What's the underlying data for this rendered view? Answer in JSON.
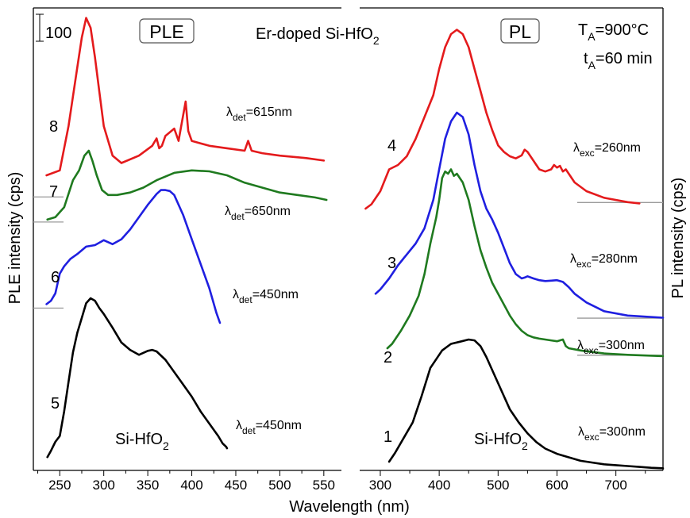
{
  "chart_data": [
    {
      "type": "line",
      "panel": "PLE",
      "title": "PLE",
      "xlabel": "Wavelength (nm)",
      "ylabel": "PLE intensity (cps)",
      "xlim": [
        220,
        570
      ],
      "xticks": [
        250,
        300,
        350,
        400,
        450,
        500,
        550
      ],
      "scale_bar_label": "100",
      "annotation": "Er-doped Si-HfO",
      "annotation_sub": "2",
      "series": [
        {
          "name": "8",
          "color": "#e41a1c",
          "label_main": "λ",
          "label_sub": "det",
          "label_rest": "=615nm",
          "x": [
            235,
            250,
            260,
            270,
            275,
            280,
            285,
            290,
            295,
            300,
            310,
            320,
            340,
            355,
            360,
            363,
            366,
            370,
            380,
            385,
            388,
            393,
            396,
            400,
            410,
            420,
            440,
            460,
            464,
            468,
            480,
            500,
            530,
            550
          ],
          "y": [
            600,
            610,
            700,
            820,
            880,
            920,
            900,
            840,
            770,
            700,
            640,
            625,
            640,
            660,
            675,
            655,
            660,
            680,
            695,
            670,
            700,
            750,
            690,
            670,
            665,
            660,
            655,
            650,
            670,
            650,
            645,
            640,
            635,
            630
          ]
        },
        {
          "name": "7",
          "color": "#1f7a1f",
          "label_main": "λ",
          "label_sub": "det",
          "label_rest": "=650nm",
          "x": [
            236,
            245,
            255,
            265,
            272,
            278,
            283,
            287,
            292,
            298,
            305,
            315,
            330,
            345,
            360,
            380,
            400,
            420,
            440,
            460,
            480,
            500,
            520,
            540,
            553
          ],
          "y": [
            510,
            515,
            535,
            590,
            610,
            640,
            650,
            630,
            600,
            570,
            560,
            560,
            565,
            575,
            590,
            605,
            610,
            608,
            600,
            585,
            575,
            565,
            560,
            555,
            550
          ]
        },
        {
          "name": "6",
          "color": "#1f1fe0",
          "label_main": "λ",
          "label_sub": "det",
          "label_rest": "=450nm",
          "x": [
            235,
            240,
            245,
            250,
            255,
            262,
            270,
            280,
            290,
            300,
            310,
            320,
            330,
            340,
            350,
            360,
            365,
            370,
            375,
            380,
            390,
            400,
            410,
            420,
            428,
            432
          ],
          "y": [
            338,
            345,
            360,
            400,
            415,
            430,
            440,
            455,
            458,
            468,
            460,
            470,
            490,
            515,
            540,
            562,
            570,
            570,
            568,
            560,
            520,
            470,
            420,
            370,
            320,
            300
          ]
        },
        {
          "name": "5",
          "color": "#000000",
          "label_main": "λ",
          "label_sub": "det",
          "label_rest": "=450nm",
          "x": [
            236,
            240,
            245,
            250,
            255,
            260,
            265,
            270,
            275,
            280,
            285,
            290,
            295,
            300,
            310,
            320,
            330,
            340,
            350,
            355,
            360,
            370,
            380,
            390,
            400,
            410,
            420,
            430,
            435,
            439,
            440
          ],
          "y": [
            27,
            40,
            58,
            70,
            120,
            180,
            240,
            280,
            310,
            340,
            350,
            345,
            330,
            318,
            290,
            260,
            245,
            235,
            243,
            245,
            242,
            225,
            200,
            175,
            150,
            120,
            95,
            70,
            55,
            48,
            45
          ]
        }
      ],
      "baselines": {
        "8": 556,
        "7": 505,
        "6": 330
      },
      "sample_label": "Si-HfO",
      "sample_sub": "2"
    },
    {
      "type": "line",
      "panel": "PL",
      "title": "PL",
      "xlabel": "Wavelength (nm)",
      "ylabel": "PL intensity (cps)",
      "xlim": [
        265,
        780
      ],
      "xticks": [
        300,
        400,
        500,
        600,
        700
      ],
      "annotation_1": "T",
      "annotation_1_sub": "A",
      "annotation_1_rest": "=900°C",
      "annotation_2": "t",
      "annotation_2_sub": "A",
      "annotation_2_rest": "=60 min",
      "series": [
        {
          "name": "4",
          "color": "#e41a1c",
          "label_main": "λ",
          "label_sub": "exc",
          "label_rest": "=260nm",
          "x": [
            275,
            285,
            300,
            315,
            330,
            345,
            360,
            375,
            390,
            400,
            410,
            420,
            430,
            440,
            450,
            460,
            470,
            480,
            490,
            500,
            510,
            520,
            530,
            540,
            545,
            550,
            560,
            570,
            580,
            590,
            595,
            600,
            605,
            610,
            615,
            620,
            630,
            650,
            680,
            720,
            740
          ],
          "y": [
            600,
            610,
            640,
            690,
            700,
            720,
            760,
            810,
            860,
            920,
            970,
            1000,
            1010,
            1000,
            970,
            920,
            870,
            820,
            780,
            745,
            730,
            720,
            715,
            722,
            735,
            730,
            710,
            690,
            685,
            690,
            700,
            694,
            698,
            685,
            690,
            680,
            660,
            640,
            625,
            615,
            612
          ]
        },
        {
          "name": "3",
          "color": "#1f1fe0",
          "label_main": "λ",
          "label_sub": "exc",
          "label_rest": "=280nm",
          "x": [
            292,
            300,
            315,
            330,
            345,
            360,
            375,
            390,
            400,
            410,
            420,
            430,
            440,
            450,
            460,
            470,
            480,
            490,
            500,
            510,
            520,
            530,
            540,
            545,
            550,
            560,
            570,
            580,
            590,
            600,
            610,
            620,
            630,
            650,
            680,
            720,
            780
          ],
          "y": [
            405,
            415,
            440,
            470,
            495,
            520,
            555,
            620,
            690,
            760,
            800,
            820,
            810,
            770,
            700,
            640,
            600,
            575,
            545,
            510,
            475,
            450,
            440,
            442,
            445,
            440,
            436,
            434,
            435,
            436,
            432,
            420,
            405,
            385,
            365,
            355,
            350
          ]
        },
        {
          "name": "2",
          "color": "#1f7a1f",
          "label_main": "λ",
          "label_sub": "exc",
          "label_rest": "=300nm",
          "x": [
            312,
            320,
            335,
            350,
            365,
            375,
            385,
            395,
            400,
            405,
            410,
            415,
            420,
            425,
            430,
            440,
            450,
            460,
            470,
            480,
            490,
            500,
            510,
            520,
            530,
            540,
            550,
            560,
            570,
            580,
            590,
            600,
            610,
            615,
            620,
            640,
            680,
            720,
            780
          ],
          "y": [
            280,
            290,
            320,
            355,
            400,
            450,
            520,
            580,
            620,
            670,
            685,
            680,
            690,
            675,
            680,
            660,
            620,
            560,
            505,
            465,
            430,
            405,
            380,
            355,
            335,
            320,
            310,
            305,
            302,
            300,
            298,
            296,
            300,
            285,
            280,
            275,
            268,
            265,
            262
          ]
        },
        {
          "name": "1",
          "color": "#000000",
          "label_main": "λ",
          "label_sub": "exc",
          "label_rest": "=300nm",
          "x": [
            315,
            325,
            340,
            355,
            370,
            385,
            395,
            405,
            420,
            435,
            450,
            460,
            470,
            480,
            490,
            500,
            510,
            520,
            535,
            550,
            565,
            580,
            600,
            620,
            640,
            660,
            680,
            700,
            720,
            740,
            760,
            780
          ],
          "y": [
            20,
            40,
            75,
            110,
            170,
            235,
            255,
            275,
            290,
            295,
            300,
            298,
            285,
            260,
            230,
            200,
            170,
            140,
            110,
            85,
            65,
            50,
            38,
            30,
            22,
            18,
            14,
            12,
            10,
            8,
            6,
            5
          ]
        }
      ],
      "baselines": {
        "4": 614,
        "3": 349,
        "2": 264
      },
      "sample_label": "Si-HfO",
      "sample_sub": "2"
    }
  ]
}
